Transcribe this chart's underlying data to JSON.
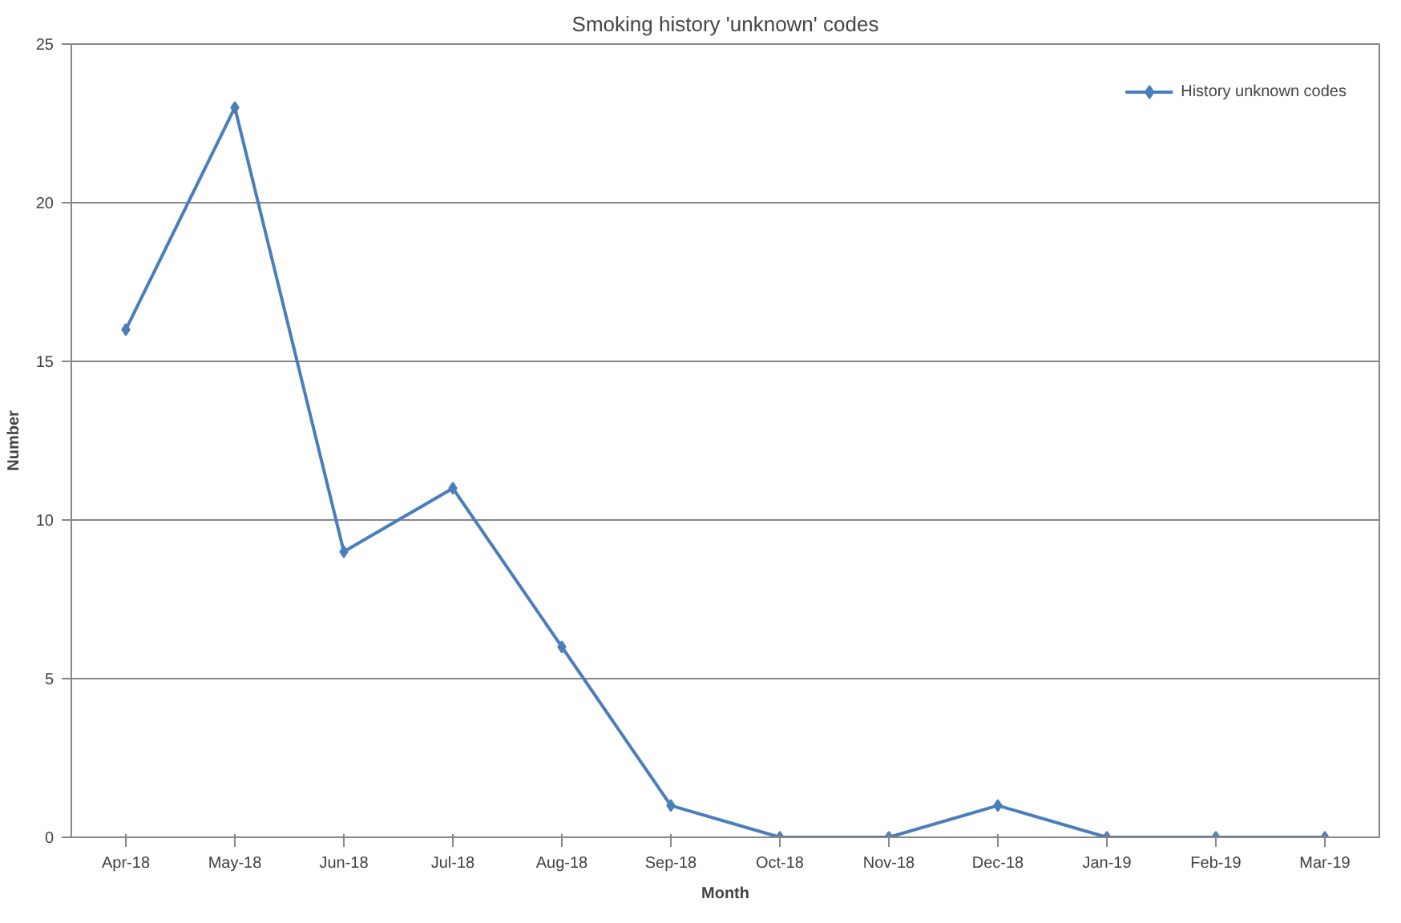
{
  "chart_data": {
    "type": "line",
    "title": "Smoking history 'unknown' codes",
    "xlabel": "Month",
    "ylabel": "Number",
    "categories": [
      "Apr-18",
      "May-18",
      "Jun-18",
      "Jul-18",
      "Aug-18",
      "Sep-18",
      "Oct-18",
      "Nov-18",
      "Dec-18",
      "Jan-19",
      "Feb-19",
      "Mar-19"
    ],
    "series": [
      {
        "name": "History unknown codes",
        "color": "#4a7ebb",
        "values": [
          16,
          23,
          9,
          11,
          6,
          1,
          0,
          0,
          1,
          0,
          0,
          0
        ]
      }
    ],
    "ylim": [
      0,
      25
    ],
    "yticks": [
      0,
      5,
      10,
      15,
      20,
      25
    ],
    "grid": "y",
    "legend": "top right",
    "marker": "diamond",
    "line_style": "solid"
  }
}
